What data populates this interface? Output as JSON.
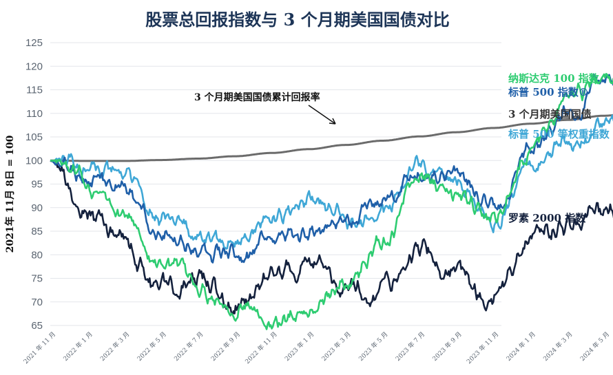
{
  "chart_data": {
    "type": "line",
    "title": "股票总回报指数与 3 个月期美国国债对比",
    "ylabel": "2021年 11月 8日 = 100",
    "xlabel": "",
    "ylim": [
      65,
      125
    ],
    "y_ticks": [
      65,
      70,
      75,
      80,
      85,
      90,
      95,
      100,
      105,
      110,
      115,
      120,
      125
    ],
    "x_ticks": [
      "2021 年 11 月",
      "2022 年 1 月",
      "2022 年 3 月",
      "2022 年 5 月",
      "2022 年 7 月",
      "2022 年 9 月",
      "2022 年 11 月",
      "2023 年 1 月",
      "2023 年 3 月",
      "2023 年 5 月",
      "2023 年 7 月",
      "2023 年 9 月",
      "2023 年 11 月",
      "2024 年 1 月",
      "2024 年 3 月",
      "2024 年 5 月"
    ],
    "grid": true,
    "annotation": "3 个月期美国国债累计回报率",
    "x_months": [
      0,
      2,
      4,
      6,
      8,
      10,
      12,
      14,
      16,
      18,
      20,
      22,
      24,
      26,
      28,
      30,
      31.4
    ],
    "series": [
      {
        "name": "纳斯达克 100 指数",
        "color": "#2ecc71",
        "values": [
          100,
          95,
          88,
          79,
          73,
          70,
          66,
          68,
          74,
          82,
          96,
          92,
          87,
          102,
          113,
          117,
          116
        ]
      },
      {
        "name": "标普 500 指数®",
        "color": "#1f5fa8",
        "values": [
          100,
          97,
          93,
          86,
          82,
          80,
          83,
          85,
          87,
          91,
          97,
          95,
          90,
          103,
          110,
          117,
          117
        ]
      },
      {
        "name": "3 个月期美国国债",
        "color": "#6b6b6b",
        "values": [
          100,
          99.9,
          99.9,
          100.1,
          100.4,
          100.9,
          101.6,
          102.4,
          103.3,
          104.2,
          105.1,
          106.0,
          106.9,
          107.8,
          108.6,
          109.5,
          110
        ]
      },
      {
        "name": "标普 500 等权重指数",
        "color": "#3fa7d6",
        "values": [
          100,
          98,
          96,
          88,
          84,
          82,
          88,
          92,
          88,
          89,
          99,
          95,
          88,
          98,
          104,
          108,
          107
        ]
      },
      {
        "name": "罗素 2000 指数",
        "color": "#14213d",
        "values": [
          100,
          88,
          83,
          73,
          76,
          70,
          75,
          79,
          73,
          73,
          81,
          76,
          70,
          84,
          86,
          89,
          87
        ]
      }
    ]
  }
}
